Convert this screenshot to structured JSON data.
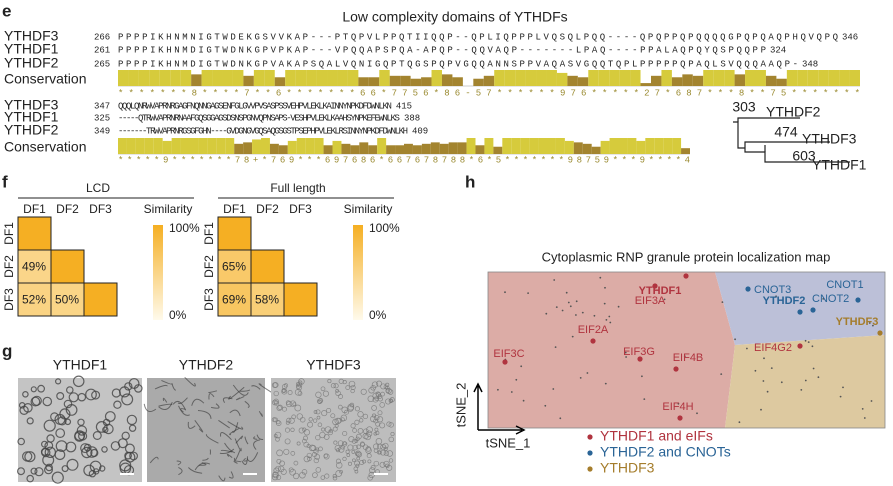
{
  "panel_e": {
    "letter": "e",
    "title": "Low complexity domains of YTHDFs",
    "blocks": [
      {
        "rows": [
          {
            "name": "YTHDF3",
            "start": "266",
            "seq": "PPPPIKHNMNIGTWDEKGSVVKAP---PTQPVLPPQTIIQQP--QPLIQPPPLVQSQLPQQ----QPQPPQPQQQQGPQPQAQPHQVQPQ",
            "end": "346"
          },
          {
            "name": "YTHDF1",
            "start": "261",
            "seq": "PPPPIKHNMDIGTWDNKGPVPKAP---VPQQAPSPQA-APQP--QQVAQP-------LPAQ----PPALAQPQYQSPQQPP",
            "end": "324"
          },
          {
            "name": "YTHDF2",
            "start": "265",
            "seq": "PPPPIKHNMDIGTWDNKGPVAKAPSQALVQNIGQPTQGSPQPVGQQANNSPPVAQASVGQQTQPLPPPPPQPAQLSVQQQAAQP-",
            "end": "348"
          }
        ],
        "conservation_label": "Conservation",
        "conservation": "*******8****7**6*******66*7756*86-57******976*****27*687***8**75*******"
      },
      {
        "rows": [
          {
            "name": "YTHDF3",
            "start": "347",
            "seq": "QQQLQNRWVAPRNRGAGFNQNNGAGSENFGLGVVPVSASPSSVEHPVLEKLKAINNYNPKDFDWNLKN",
            "end": "415"
          },
          {
            "name": "YTHDF1",
            "start": "325",
            "seq": "-----QTRWVAPRNRNAAFGQSGGAGSDSNSPGNVQPNSAPS-VESHPVLEKLKAAHSYNPKEFEWNLKS",
            "end": "388"
          },
          {
            "name": "YTHDF2",
            "start": "349",
            "seq": "-------TRWVAPRNRGSGFGHN----GVDGNGVGQSAQGSGSTPSEPHPVLEKLRSINNYNPKDFDWNLKH",
            "end": "409"
          }
        ],
        "conservation_label": "Conservation",
        "conservation": "*****9*******78+*769***697686*667678788*6*5*******98759***9****4"
      }
    ],
    "tree": [
      {
        "length": "303",
        "name": "YTHDF2"
      },
      {
        "length": "474",
        "name": "YTHDF3"
      },
      {
        "length": "603",
        "name": "YTHDF1"
      }
    ]
  },
  "panel_f": {
    "letter": "f",
    "labels": [
      "DF1",
      "DF2",
      "DF3"
    ],
    "legend_title": "Similarity",
    "legend_ticks": [
      {
        "value": 100,
        "label": "100%"
      },
      {
        "value": 0,
        "label": "0%"
      }
    ],
    "heatmaps": [
      {
        "title": "LCD",
        "values": [
          [
            100,
            null,
            null
          ],
          [
            49,
            100,
            null
          ],
          [
            52,
            50,
            100
          ]
        ],
        "value_labels": [
          [
            null,
            null,
            null
          ],
          [
            "49%",
            null,
            null
          ],
          [
            "52%",
            "50%",
            null
          ]
        ]
      },
      {
        "title": "Full length",
        "values": [
          [
            100,
            null,
            null
          ],
          [
            65,
            100,
            null
          ],
          [
            69,
            58,
            100
          ]
        ],
        "value_labels": [
          [
            null,
            null,
            null
          ],
          [
            "65%",
            null,
            null
          ],
          [
            "69%",
            "58%",
            null
          ]
        ]
      }
    ]
  },
  "panel_g": {
    "letter": "g",
    "images": [
      "YTHDF1",
      "YTHDF2",
      "YTHDF3"
    ]
  },
  "panel_h": {
    "letter": "h",
    "title": "Cytoplasmic RNP granule protein localization map",
    "x_label": "tSNE_1",
    "y_label": "tSNE_2",
    "points": [
      "YTHDF1",
      "EIF3A",
      "CNOT3",
      "CNOT1",
      "YTHDF2",
      "CNOT2",
      "YTHDF3",
      "EIF4G2",
      "EIF3C",
      "EIF2A",
      "EIF3G",
      "EIF4B",
      "EIF4H"
    ],
    "legend": [
      "YTHDF1 and eIFs",
      "YTHDF2 and CNOTs",
      "YTHDF3"
    ]
  }
}
